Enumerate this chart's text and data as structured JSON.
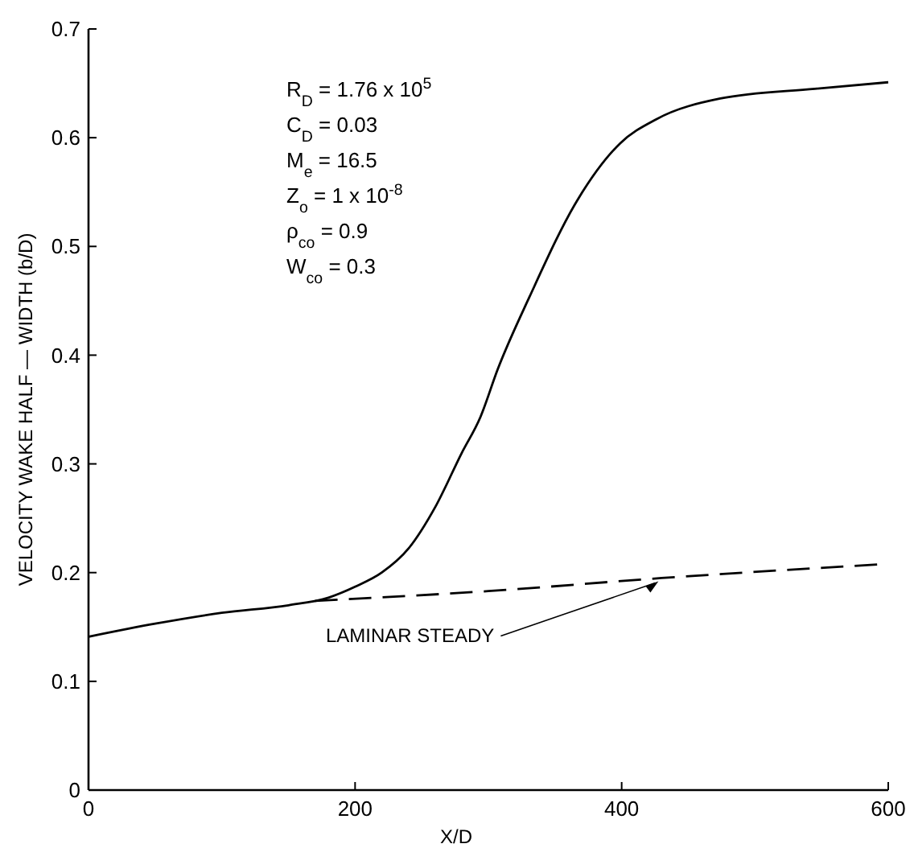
{
  "chart_data": {
    "type": "line",
    "xlabel": "X/D",
    "ylabel": "VELOCITY WAKE HALF — WIDTH (b/D)",
    "xlim": [
      0,
      600
    ],
    "ylim": [
      0,
      0.7
    ],
    "xticks": [
      0,
      200,
      400,
      600
    ],
    "yticks": [
      0,
      0.1,
      0.2,
      0.3,
      0.4,
      0.5,
      0.6,
      0.7
    ],
    "series": [
      {
        "color": "#000000",
        "line_style": "solid",
        "x": [
          0,
          50,
          100,
          150,
          180,
          200,
          220,
          240,
          260,
          280,
          294,
          307,
          331,
          367,
          399,
          426,
          474,
          545,
          600
        ],
        "values": [
          0.141,
          0.153,
          0.163,
          0.17,
          0.177,
          0.187,
          0.2,
          0.222,
          0.26,
          0.31,
          0.343,
          0.387,
          0.454,
          0.543,
          0.595,
          0.617,
          0.636,
          0.645,
          0.651
        ]
      },
      {
        "color": "#000000",
        "line_style": "dashed",
        "x": [
          170,
          300,
          430,
          600
        ],
        "values": [
          0.174,
          0.183,
          0.195,
          0.208
        ]
      }
    ],
    "annotations": [
      {
        "text": "LAMINAR STEADY",
        "x": 430,
        "y": 0.195
      },
      "R$_{D}$ = 1.76 x 10$^{5}$",
      "C$_{D}$ = 0.03",
      "M$_{e}$ = 16.5",
      "Z$_{o}$ = 1 x 10$^{-8}$",
      "ρ$_{co}$ = 0.9",
      "W$_{co}$ = 0.3"
    ]
  }
}
